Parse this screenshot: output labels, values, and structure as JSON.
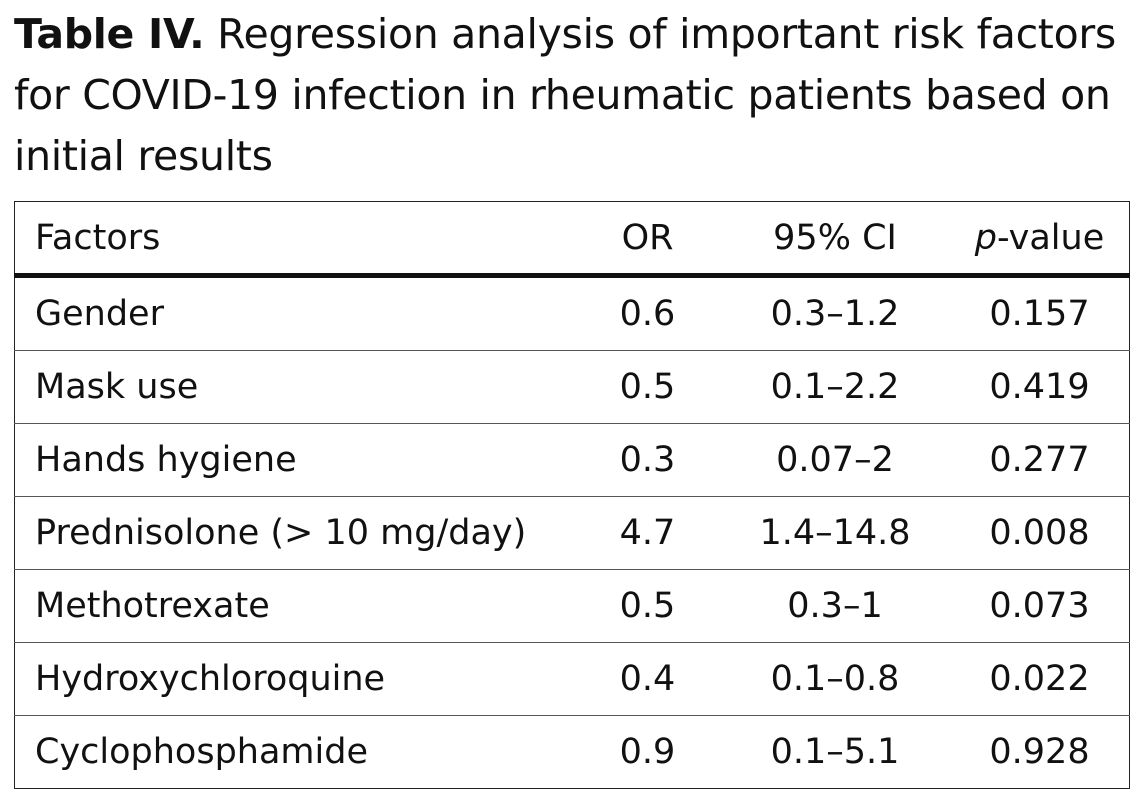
{
  "caption": {
    "label": "Table IV.",
    "text": "Regression analysis of important risk factors for COVID-19 infection in rheumatic patients based on initial results"
  },
  "table": {
    "headers": {
      "factors": "Factors",
      "or": "OR",
      "ci": "95% CI",
      "p_italic": "p",
      "p_rest": "-value"
    },
    "rows": [
      {
        "factor": "Gender",
        "or": "0.6",
        "ci": "0.3–1.2",
        "p": "0.157"
      },
      {
        "factor": "Mask use",
        "or": "0.5",
        "ci": "0.1–2.2",
        "p": "0.419"
      },
      {
        "factor": "Hands hygiene",
        "or": "0.3",
        "ci": "0.07–2",
        "p": "0.277"
      },
      {
        "factor": "Prednisolone (> 10 mg/day)",
        "or": "4.7",
        "ci": "1.4–14.8",
        "p": "0.008"
      },
      {
        "factor": "Methotrexate",
        "or": "0.5",
        "ci": "0.3–1",
        "p": "0.073"
      },
      {
        "factor": "Hydroxychloroquine",
        "or": "0.4",
        "ci": "0.1–0.8",
        "p": "0.022"
      },
      {
        "factor": "Cyclophosphamide",
        "or": "0.9",
        "ci": "0.1–5.1",
        "p": "0.928"
      }
    ]
  }
}
